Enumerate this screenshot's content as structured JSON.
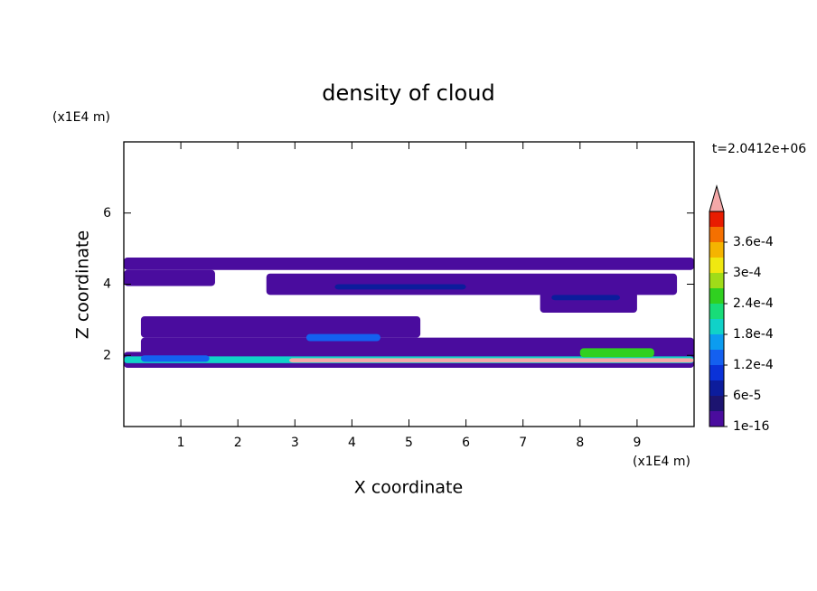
{
  "chart_data": {
    "type": "contour",
    "title": "density of cloud",
    "xlabel": "X coordinate",
    "ylabel": "Z coordinate",
    "xunit": "(x1E4 m)",
    "yunit": "(x1E4 m)",
    "annotation": "t=2.0412e+06",
    "xlim": [
      0,
      10
    ],
    "ylim": [
      0,
      8
    ],
    "xticks": [
      1,
      2,
      3,
      4,
      5,
      6,
      7,
      8,
      9
    ],
    "yticks": [
      2,
      4,
      6
    ],
    "colorbar": {
      "colors": [
        "#4a0c9e",
        "#1c1470",
        "#0c1c9c",
        "#0a32d8",
        "#1460f0",
        "#0c9cf0",
        "#10d2c8",
        "#18dc78",
        "#30d020",
        "#a0dc18",
        "#f0e810",
        "#f5b400",
        "#f57000",
        "#e81c00"
      ],
      "over_color": "#f4a8a8",
      "ticks": [
        {
          "value": 1e-16,
          "label": "1e-16"
        },
        {
          "value": 6e-05,
          "label": "6e-5"
        },
        {
          "value": 0.00012,
          "label": "1.2e-4"
        },
        {
          "value": 0.00018,
          "label": "1.8e-4"
        },
        {
          "value": 0.00024,
          "label": "2.4e-4"
        },
        {
          "value": 0.0003,
          "label": "3e-4"
        },
        {
          "value": 0.00036,
          "label": "3.6e-4"
        }
      ],
      "lim": [
        0,
        0.00042
      ]
    },
    "regions": [
      {
        "x": [
          0,
          10
        ],
        "z": [
          4.4,
          4.75
        ],
        "value": 1e-16
      },
      {
        "x": [
          0,
          1.6
        ],
        "z": [
          3.95,
          4.4
        ],
        "value": 1e-16
      },
      {
        "x": [
          2.5,
          9.7
        ],
        "z": [
          3.7,
          4.3
        ],
        "value": 1e-16
      },
      {
        "x": [
          7.3,
          9
        ],
        "z": [
          3.2,
          3.8
        ],
        "value": 1e-16
      },
      {
        "x": [
          3.7,
          6
        ],
        "z": [
          3.85,
          4.0
        ],
        "value": 6e-05
      },
      {
        "x": [
          7.5,
          8.7
        ],
        "z": [
          3.55,
          3.7
        ],
        "value": 6e-05
      },
      {
        "x": [
          0.3,
          5.2
        ],
        "z": [
          2.5,
          3.1
        ],
        "value": 1e-16
      },
      {
        "x": [
          0.3,
          10
        ],
        "z": [
          2.0,
          2.5
        ],
        "value": 1e-16
      },
      {
        "x": [
          3.2,
          4.5
        ],
        "z": [
          2.4,
          2.6
        ],
        "value": 0.00012
      },
      {
        "x": [
          0,
          10
        ],
        "z": [
          1.65,
          2.1
        ],
        "value": 1e-16
      },
      {
        "x": [
          0,
          10
        ],
        "z": [
          1.78,
          1.97
        ],
        "value": 0.00018
      },
      {
        "x": [
          2.9,
          10
        ],
        "z": [
          1.8,
          1.92
        ],
        "value": 0.00045
      },
      {
        "x": [
          0.3,
          1.5
        ],
        "z": [
          1.82,
          2.0
        ],
        "value": 0.00015
      },
      {
        "x": [
          8,
          9.3
        ],
        "z": [
          1.95,
          2.2
        ],
        "value": 0.00024
      }
    ]
  }
}
